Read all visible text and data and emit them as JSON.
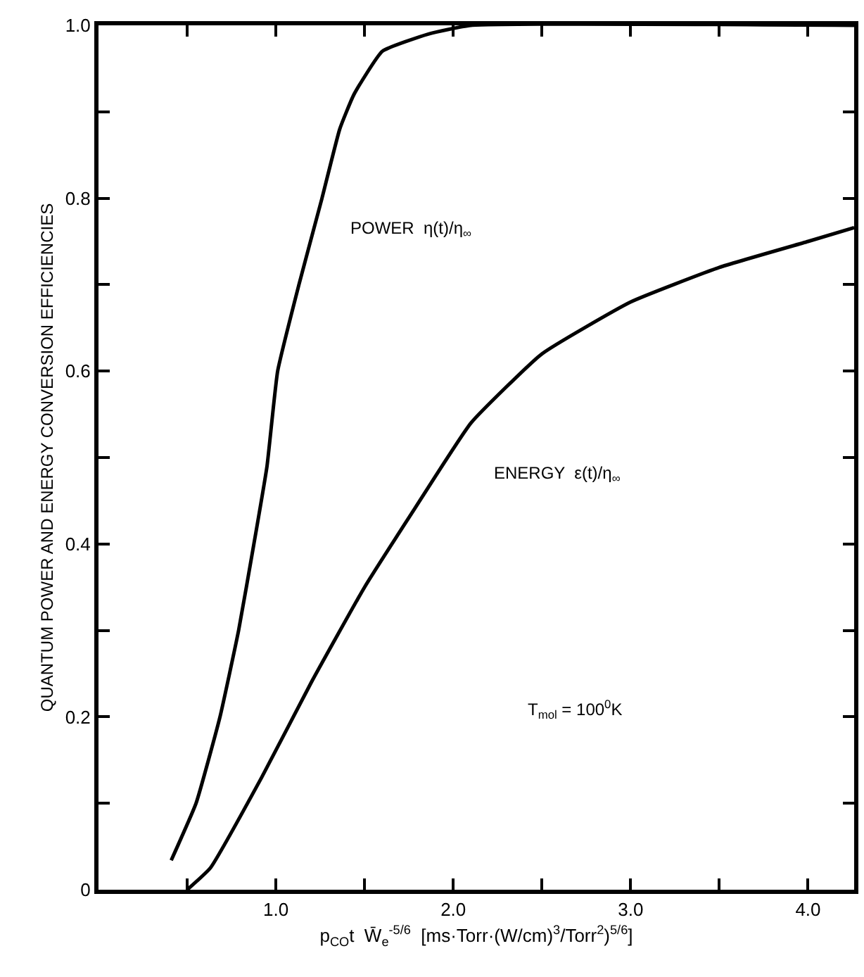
{
  "chart_data": {
    "type": "line",
    "xlabel": "p$_{CO}$t  W̄$_{e}$$^{-5/6}$  [ms·Torr·(W/cm)$^{3}$/Torr$^{2}$)$^{5/6}$]",
    "ylabel": "QUANTUM POWER AND ENERGY CONVERSION EFFICIENCIES",
    "xlim": [
      0,
      4.26
    ],
    "ylim": [
      0,
      1.0
    ],
    "xticks": [
      {
        "value": 0.5,
        "label": null
      },
      {
        "value": 1.0,
        "label": "1.0"
      },
      {
        "value": 1.5,
        "label": null
      },
      {
        "value": 2.0,
        "label": "2.0"
      },
      {
        "value": 2.5,
        "label": null
      },
      {
        "value": 3.0,
        "label": "3.0"
      },
      {
        "value": 3.5,
        "label": null
      },
      {
        "value": 4.0,
        "label": "4.0"
      }
    ],
    "yticks": [
      0,
      {
        "value": 0.1,
        "label": null
      },
      0.2,
      {
        "value": 0.3,
        "label": null
      },
      0.4,
      {
        "value": 0.5,
        "label": null
      },
      0.6,
      {
        "value": 0.7,
        "label": null
      },
      0.8,
      {
        "value": 0.9,
        "label": null
      },
      {
        "value": 1.0,
        "label": "1.0"
      }
    ],
    "marker": "none",
    "line_style": "solid",
    "series": [
      {
        "color": "#000000",
        "x": [
          0.41,
          0.55,
          0.685,
          0.79,
          0.876,
          0.95,
          1.01,
          1.13,
          1.26,
          1.36,
          1.44,
          1.6,
          1.86,
          2.1,
          4.26
        ],
        "values": [
          0.034,
          0.1,
          0.2,
          0.3,
          0.4,
          0.49,
          0.6,
          0.7,
          0.8,
          0.88,
          0.92,
          0.97,
          0.99,
          1.0,
          1.0
        ]
      },
      {
        "color": "#000000",
        "x": [
          0.5,
          0.63,
          0.92,
          1.2,
          1.5,
          1.78,
          2.1,
          2.5,
          3.0,
          3.5,
          4.0,
          4.26
        ],
        "values": [
          0,
          0.025,
          0.13,
          0.24,
          0.35,
          0.44,
          0.54,
          0.62,
          0.68,
          0.72,
          0.75,
          0.766
        ]
      }
    ],
    "annotations": [
      "POWER  η(t)/η$_{∞}$",
      "ENERGY  ε(t)/η$_{∞}$",
      "T$_{mol}$ = 100$^{0}$K"
    ]
  }
}
